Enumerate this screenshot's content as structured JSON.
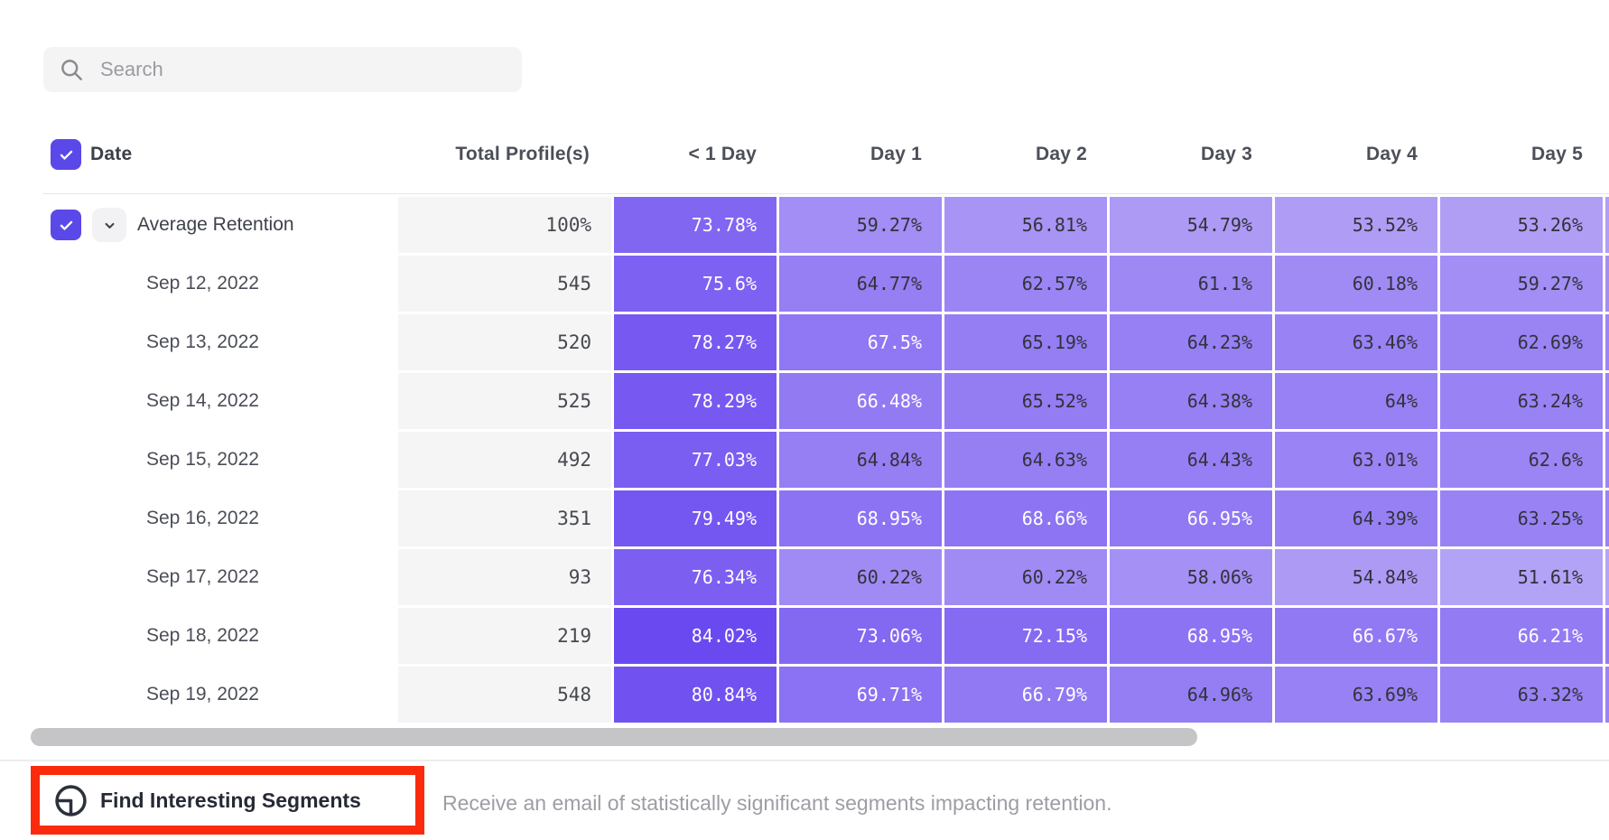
{
  "search": {
    "placeholder": "Search"
  },
  "theme": {
    "checkbox_purple": "#5b48e9",
    "cell_low": "#b7a7f6",
    "cell_high": "#6847f0",
    "cell_dark_text": "#32323c",
    "cell_light_text": "#ffffff",
    "annotation_red": "#fa2b0c",
    "white_text_threshold": 66
  },
  "table": {
    "columns": [
      "Date",
      "Total Profile(s)",
      "< 1 Day",
      "Day 1",
      "Day 2",
      "Day 3",
      "Day 4",
      "Day 5"
    ],
    "rows": [
      {
        "label": "Average Retention",
        "average": true,
        "total": "100%",
        "values": [
          "73.78%",
          "59.27%",
          "56.81%",
          "54.79%",
          "53.52%",
          "53.26%"
        ]
      },
      {
        "label": "Sep 12, 2022",
        "average": false,
        "total": "545",
        "values": [
          "75.6%",
          "64.77%",
          "62.57%",
          "61.1%",
          "60.18%",
          "59.27%"
        ]
      },
      {
        "label": "Sep 13, 2022",
        "average": false,
        "total": "520",
        "values": [
          "78.27%",
          "67.5%",
          "65.19%",
          "64.23%",
          "63.46%",
          "62.69%"
        ]
      },
      {
        "label": "Sep 14, 2022",
        "average": false,
        "total": "525",
        "values": [
          "78.29%",
          "66.48%",
          "65.52%",
          "64.38%",
          "64%",
          "63.24%"
        ]
      },
      {
        "label": "Sep 15, 2022",
        "average": false,
        "total": "492",
        "values": [
          "77.03%",
          "64.84%",
          "64.63%",
          "64.43%",
          "63.01%",
          "62.6%"
        ]
      },
      {
        "label": "Sep 16, 2022",
        "average": false,
        "total": "351",
        "values": [
          "79.49%",
          "68.95%",
          "68.66%",
          "66.95%",
          "64.39%",
          "63.25%"
        ]
      },
      {
        "label": "Sep 17, 2022",
        "average": false,
        "total": "93",
        "values": [
          "76.34%",
          "60.22%",
          "60.22%",
          "58.06%",
          "54.84%",
          "51.61%"
        ]
      },
      {
        "label": "Sep 18, 2022",
        "average": false,
        "total": "219",
        "values": [
          "84.02%",
          "73.06%",
          "72.15%",
          "68.95%",
          "66.67%",
          "66.21%"
        ]
      },
      {
        "label": "Sep 19, 2022",
        "average": false,
        "total": "548",
        "values": [
          "80.84%",
          "69.71%",
          "66.79%",
          "64.96%",
          "63.69%",
          "63.32%"
        ]
      }
    ]
  },
  "footer": {
    "button_label": "Find Interesting Segments",
    "description": "Receive an email of statistically significant segments impacting retention."
  }
}
